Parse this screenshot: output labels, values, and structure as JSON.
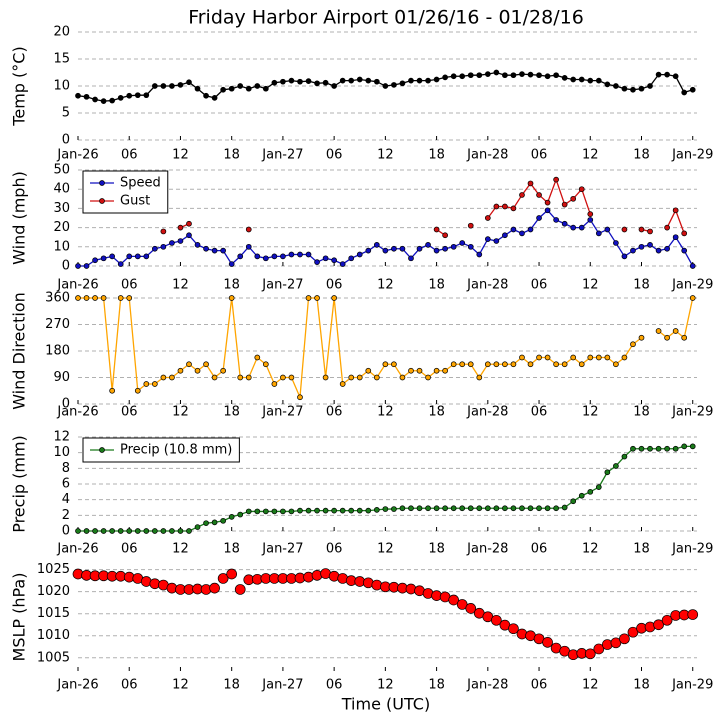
{
  "chart_data": [
    {
      "type": "line",
      "title": "Friday Harbor Airport 01/26/16 - 01/28/16",
      "ylabel": "Temp (°C)",
      "x": [
        0,
        1,
        2,
        3,
        4,
        5,
        6,
        7,
        8,
        9,
        10,
        11,
        12,
        13,
        14,
        15,
        16,
        17,
        18,
        19,
        20,
        21,
        22,
        23,
        24,
        25,
        26,
        27,
        28,
        29,
        30,
        31,
        32,
        33,
        34,
        35,
        36,
        37,
        38,
        39,
        40,
        41,
        42,
        43,
        44,
        45,
        46,
        47,
        48,
        49,
        50,
        51,
        52,
        53,
        54,
        55,
        56,
        57,
        58,
        59,
        60,
        61,
        62,
        63,
        64,
        65,
        66,
        67,
        68,
        69,
        70,
        71,
        72
      ],
      "values": [
        8.2,
        8.0,
        7.5,
        7.2,
        7.3,
        7.8,
        8.2,
        8.3,
        8.3,
        10,
        10,
        10,
        10.2,
        10.7,
        9.5,
        8.2,
        7.8,
        9.3,
        9.5,
        10,
        9.5,
        10,
        9.5,
        10.6,
        10.8,
        11,
        10.8,
        10.9,
        10.5,
        10.6,
        10,
        11,
        11,
        11.2,
        11,
        10.8,
        10,
        10.2,
        10.5,
        11,
        11,
        11,
        11.2,
        11.6,
        11.8,
        11.8,
        12,
        12,
        12.2,
        12.5,
        12,
        12,
        12.2,
        12.1,
        12,
        11.8,
        12,
        11.5,
        11.2,
        11.2,
        11,
        11,
        10.3,
        10,
        9.5,
        9.3,
        9.5,
        10,
        12.1,
        12.1,
        11.8,
        8.8,
        9.3
      ],
      "color": "#000000",
      "xlim": [
        0,
        72.5
      ],
      "xticks": [
        {
          "value": 0,
          "label": "Jan-26"
        },
        {
          "value": 6,
          "label": "06"
        },
        {
          "value": 12,
          "label": "12"
        },
        {
          "value": 18,
          "label": "18"
        },
        {
          "value": 24,
          "label": "Jan-27"
        },
        {
          "value": 30,
          "label": "06"
        },
        {
          "value": 36,
          "label": "12"
        },
        {
          "value": 42,
          "label": "18"
        },
        {
          "value": 48,
          "label": "Jan-28"
        },
        {
          "value": 54,
          "label": "06"
        },
        {
          "value": 60,
          "label": "12"
        },
        {
          "value": 66,
          "label": "18"
        },
        {
          "value": 72,
          "label": "Jan-29"
        }
      ],
      "ylim": [
        0,
        20
      ],
      "yticks": [
        0,
        5,
        10,
        15,
        20
      ],
      "grid": true
    },
    {
      "type": "line",
      "ylabel": "Wind (mph)",
      "legend": "upper left",
      "x": [
        0,
        1,
        2,
        3,
        4,
        5,
        6,
        7,
        8,
        9,
        10,
        11,
        12,
        13,
        14,
        15,
        16,
        17,
        18,
        19,
        20,
        21,
        22,
        23,
        24,
        25,
        26,
        27,
        28,
        29,
        30,
        31,
        32,
        33,
        34,
        35,
        36,
        37,
        38,
        39,
        40,
        41,
        42,
        43,
        44,
        45,
        46,
        47,
        48,
        49,
        50,
        51,
        52,
        53,
        54,
        55,
        56,
        57,
        58,
        59,
        60,
        61,
        62,
        63,
        64,
        65,
        66,
        67,
        68,
        69,
        70,
        71,
        72
      ],
      "series": [
        {
          "name": "Speed",
          "color": "#1010c0",
          "values": [
            0,
            0,
            3,
            4,
            5,
            1,
            5,
            5,
            5,
            9,
            10,
            12,
            13,
            16,
            11,
            9,
            8,
            8,
            1,
            5,
            10,
            5,
            4,
            5,
            5,
            6,
            6,
            6,
            2,
            4,
            3,
            1,
            4,
            6,
            8,
            11,
            8,
            9,
            9,
            4,
            9,
            11,
            8,
            9,
            10,
            12,
            10,
            6,
            14,
            13,
            16,
            19,
            17,
            19,
            25,
            29,
            24,
            22,
            20,
            20,
            24,
            17,
            19,
            12,
            5,
            8,
            10,
            11,
            8,
            9,
            15,
            8,
            0
          ]
        },
        {
          "name": "Gust",
          "color": "#d01010",
          "values": [
            null,
            null,
            null,
            null,
            null,
            null,
            null,
            null,
            null,
            null,
            18,
            null,
            20,
            22,
            null,
            null,
            null,
            null,
            null,
            null,
            19,
            null,
            null,
            null,
            null,
            null,
            null,
            null,
            null,
            null,
            null,
            null,
            null,
            null,
            null,
            null,
            null,
            null,
            null,
            null,
            null,
            null,
            19,
            16,
            null,
            null,
            21,
            null,
            25,
            31,
            31,
            30,
            37,
            43,
            37,
            33,
            45,
            32,
            35,
            40,
            27,
            null,
            null,
            null,
            19,
            null,
            19,
            18,
            null,
            20,
            29,
            17,
            null
          ]
        }
      ],
      "xlim": [
        0,
        72.5
      ],
      "xticks": [
        {
          "value": 0,
          "label": "Jan-26"
        },
        {
          "value": 6,
          "label": "06"
        },
        {
          "value": 12,
          "label": "12"
        },
        {
          "value": 18,
          "label": "18"
        },
        {
          "value": 24,
          "label": "Jan-27"
        },
        {
          "value": 30,
          "label": "06"
        },
        {
          "value": 36,
          "label": "12"
        },
        {
          "value": 42,
          "label": "18"
        },
        {
          "value": 48,
          "label": "Jan-28"
        },
        {
          "value": 54,
          "label": "06"
        },
        {
          "value": 60,
          "label": "12"
        },
        {
          "value": 66,
          "label": "18"
        },
        {
          "value": 72,
          "label": "Jan-29"
        }
      ],
      "ylim": [
        0,
        50
      ],
      "yticks": [
        0,
        10,
        20,
        30,
        40,
        50
      ],
      "grid": true
    },
    {
      "type": "line",
      "ylabel": "Wind Direction",
      "x": [
        0,
        1,
        2,
        3,
        4,
        5,
        6,
        7,
        8,
        9,
        10,
        11,
        12,
        13,
        14,
        15,
        16,
        17,
        18,
        19,
        20,
        21,
        22,
        23,
        24,
        25,
        26,
        27,
        28,
        29,
        30,
        31,
        32,
        33,
        34,
        35,
        36,
        37,
        38,
        39,
        40,
        41,
        42,
        43,
        44,
        45,
        46,
        47,
        48,
        49,
        50,
        51,
        52,
        53,
        54,
        55,
        56,
        57,
        58,
        59,
        60,
        61,
        62,
        63,
        64,
        65,
        66,
        67,
        68,
        69,
        70,
        71,
        72
      ],
      "values": [
        360,
        360,
        360,
        360,
        45,
        360,
        360,
        45,
        68,
        68,
        90,
        90,
        113,
        135,
        113,
        135,
        90,
        113,
        360,
        90,
        90,
        158,
        135,
        68,
        90,
        90,
        23,
        360,
        360,
        90,
        360,
        68,
        90,
        90,
        113,
        90,
        135,
        135,
        90,
        113,
        113,
        90,
        113,
        113,
        135,
        135,
        135,
        90,
        135,
        135,
        135,
        135,
        158,
        135,
        158,
        158,
        135,
        135,
        158,
        135,
        158,
        158,
        158,
        135,
        158,
        203,
        225,
        null,
        248,
        225,
        248,
        225,
        360
      ],
      "color": "#ffa500",
      "xlim": [
        0,
        72.5
      ],
      "xticks": [
        {
          "value": 0,
          "label": "Jan-26"
        },
        {
          "value": 6,
          "label": "06"
        },
        {
          "value": 12,
          "label": "12"
        },
        {
          "value": 18,
          "label": "18"
        },
        {
          "value": 24,
          "label": "Jan-27"
        },
        {
          "value": 30,
          "label": "06"
        },
        {
          "value": 36,
          "label": "12"
        },
        {
          "value": 42,
          "label": "18"
        },
        {
          "value": 48,
          "label": "Jan-28"
        },
        {
          "value": 54,
          "label": "06"
        },
        {
          "value": 60,
          "label": "12"
        },
        {
          "value": 66,
          "label": "18"
        },
        {
          "value": 72,
          "label": "Jan-29"
        }
      ],
      "ylim": [
        0,
        360
      ],
      "yticks": [
        0,
        90,
        180,
        270,
        360
      ],
      "grid": true
    },
    {
      "type": "line",
      "ylabel": "Precip (mm)",
      "legend": "upper left",
      "x": [
        0,
        1,
        2,
        3,
        4,
        5,
        6,
        7,
        8,
        9,
        10,
        11,
        12,
        13,
        14,
        15,
        16,
        17,
        18,
        19,
        20,
        21,
        22,
        23,
        24,
        25,
        26,
        27,
        28,
        29,
        30,
        31,
        32,
        33,
        34,
        35,
        36,
        37,
        38,
        39,
        40,
        41,
        42,
        43,
        44,
        45,
        46,
        47,
        48,
        49,
        50,
        51,
        52,
        53,
        54,
        55,
        56,
        57,
        58,
        59,
        60,
        61,
        62,
        63,
        64,
        65,
        66,
        67,
        68,
        69,
        70,
        71,
        72
      ],
      "series": [
        {
          "name": "Precip (10.8 mm)",
          "color": "#1a7a1a",
          "values": [
            0,
            0,
            0,
            0,
            0,
            0,
            0,
            0,
            0,
            0,
            0,
            0,
            0,
            0,
            0.5,
            1,
            1.1,
            1.3,
            1.8,
            2.1,
            2.5,
            2.5,
            2.5,
            2.5,
            2.5,
            2.5,
            2.6,
            2.6,
            2.6,
            2.6,
            2.6,
            2.6,
            2.6,
            2.6,
            2.6,
            2.7,
            2.8,
            2.8,
            2.9,
            2.9,
            2.9,
            2.9,
            2.9,
            2.9,
            2.9,
            2.9,
            2.9,
            2.9,
            2.9,
            2.9,
            2.9,
            2.9,
            2.9,
            2.9,
            2.9,
            2.9,
            2.9,
            3.0,
            3.8,
            4.5,
            5.0,
            5.6,
            7.5,
            8.3,
            9.5,
            10.5,
            10.5,
            10.5,
            10.5,
            10.5,
            10.5,
            10.8,
            10.8
          ]
        }
      ],
      "xlim": [
        0,
        72.5
      ],
      "xticks": [
        {
          "value": 0,
          "label": "Jan-26"
        },
        {
          "value": 6,
          "label": "06"
        },
        {
          "value": 12,
          "label": "12"
        },
        {
          "value": 18,
          "label": "18"
        },
        {
          "value": 24,
          "label": "Jan-27"
        },
        {
          "value": 30,
          "label": "06"
        },
        {
          "value": 36,
          "label": "12"
        },
        {
          "value": 42,
          "label": "18"
        },
        {
          "value": 48,
          "label": "Jan-28"
        },
        {
          "value": 54,
          "label": "06"
        },
        {
          "value": 60,
          "label": "12"
        },
        {
          "value": 66,
          "label": "18"
        },
        {
          "value": 72,
          "label": "Jan-29"
        }
      ],
      "ylim": [
        0,
        12
      ],
      "yticks": [
        0,
        2,
        4,
        6,
        8,
        10,
        12
      ],
      "grid": true
    },
    {
      "type": "scatter",
      "ylabel": "MSLP (hPa)",
      "xlabel": "Time (UTC)",
      "x": [
        0,
        1,
        2,
        3,
        4,
        5,
        6,
        7,
        8,
        9,
        10,
        11,
        12,
        13,
        14,
        15,
        16,
        17,
        18,
        19,
        20,
        21,
        22,
        23,
        24,
        25,
        26,
        27,
        28,
        29,
        30,
        31,
        32,
        33,
        34,
        35,
        36,
        37,
        38,
        39,
        40,
        41,
        42,
        43,
        44,
        45,
        46,
        47,
        48,
        49,
        50,
        51,
        52,
        53,
        54,
        55,
        56,
        57,
        58,
        59,
        60,
        61,
        62,
        63,
        64,
        65,
        66,
        67,
        68,
        69,
        70,
        71,
        72
      ],
      "values": [
        1024,
        1023.7,
        1023.6,
        1023.6,
        1023.5,
        1023.5,
        1023.3,
        1023,
        1022.3,
        1021.8,
        1021.5,
        1020.8,
        1020.5,
        1020.5,
        1020.6,
        1020.5,
        1020.8,
        1023,
        1024,
        1020.5,
        1022.7,
        1022.8,
        1023,
        1023,
        1023,
        1023,
        1023.1,
        1023.3,
        1023.7,
        1024.1,
        1023.5,
        1023,
        1022.5,
        1022.3,
        1022,
        1021.5,
        1021.1,
        1021,
        1020.8,
        1020.6,
        1020.2,
        1019.6,
        1019.1,
        1018.8,
        1018.1,
        1017.1,
        1016.2,
        1015.1,
        1014.3,
        1013.5,
        1012.4,
        1011.6,
        1010.4,
        1010,
        1009.3,
        1008.5,
        1007.2,
        1006.5,
        1005.7,
        1006,
        1005.9,
        1007,
        1008,
        1008.4,
        1009.3,
        1010.8,
        1011.7,
        1012,
        1012.5,
        1013.5,
        1014.6,
        1014.7,
        1014.8
      ],
      "color": "#ff0000",
      "xlim": [
        0,
        72.5
      ],
      "xticks": [
        {
          "value": 0,
          "label": "Jan-26"
        },
        {
          "value": 6,
          "label": "06"
        },
        {
          "value": 12,
          "label": "12"
        },
        {
          "value": 18,
          "label": "18"
        },
        {
          "value": 24,
          "label": "Jan-27"
        },
        {
          "value": 30,
          "label": "06"
        },
        {
          "value": 36,
          "label": "12"
        },
        {
          "value": 42,
          "label": "18"
        },
        {
          "value": 48,
          "label": "Jan-28"
        },
        {
          "value": 54,
          "label": "06"
        },
        {
          "value": 60,
          "label": "12"
        },
        {
          "value": 66,
          "label": "18"
        },
        {
          "value": 72,
          "label": "Jan-29"
        }
      ],
      "ylim": [
        1002,
        1026.5
      ],
      "yticks": [
        1005,
        1010,
        1015,
        1020,
        1025
      ],
      "grid": true
    }
  ]
}
